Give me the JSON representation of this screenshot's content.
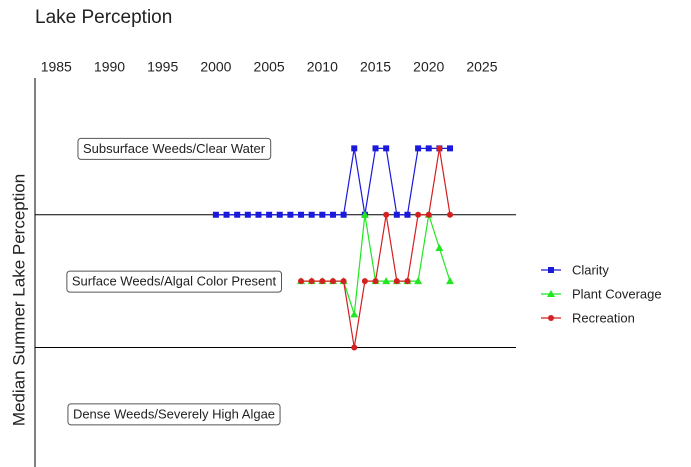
{
  "chart_data": {
    "type": "line",
    "title": "Lake Perception",
    "y_label": "Median Summer Lake Perception",
    "x": [
      2000,
      2001,
      2002,
      2003,
      2004,
      2005,
      2006,
      2007,
      2008,
      2009,
      2010,
      2011,
      2012,
      2013,
      2014,
      2015,
      2016,
      2017,
      2018,
      2019,
      2020,
      2021,
      2022
    ],
    "series": [
      {
        "name": "Clarity",
        "color": "#1a1adb",
        "marker": "square",
        "values": [
          2.5,
          2.5,
          2.5,
          2.5,
          2.5,
          2.5,
          2.5,
          2.5,
          2.5,
          2.5,
          2.5,
          2.5,
          2.5,
          3,
          2.5,
          3,
          3,
          2.5,
          2.5,
          3,
          3,
          3,
          3
        ]
      },
      {
        "name": "Plant Coverage",
        "color": "#22e622",
        "marker": "triangle",
        "values": [
          null,
          null,
          null,
          null,
          null,
          null,
          null,
          null,
          2,
          2,
          2,
          2,
          2,
          1.75,
          2.5,
          2,
          2,
          2,
          2,
          2,
          2.5,
          2.25,
          2
        ]
      },
      {
        "name": "Recreation",
        "color": "#d42020",
        "marker": "circle",
        "values": [
          null,
          null,
          null,
          null,
          null,
          null,
          null,
          null,
          2,
          2,
          2,
          2,
          2,
          1.5,
          2,
          2,
          2.5,
          2,
          2,
          2.5,
          2.5,
          3,
          2.5
        ]
      }
    ],
    "xlim": [
      1983,
      2028.2
    ],
    "xticks": [
      1985,
      1990,
      1995,
      2000,
      2005,
      2010,
      2015,
      2020,
      2025
    ],
    "ylim": [
      0.6,
      3.53
    ],
    "hlines": [
      2.5,
      1.5
    ],
    "bands": [
      {
        "label": "Subsurface Weeds/Clear Water",
        "y": 3
      },
      {
        "label": "Surface Weeds/Algal Color Present",
        "y": 2
      },
      {
        "label": "Dense Weeds/Severely High Algae",
        "y": 1
      }
    ],
    "legend": "right"
  }
}
